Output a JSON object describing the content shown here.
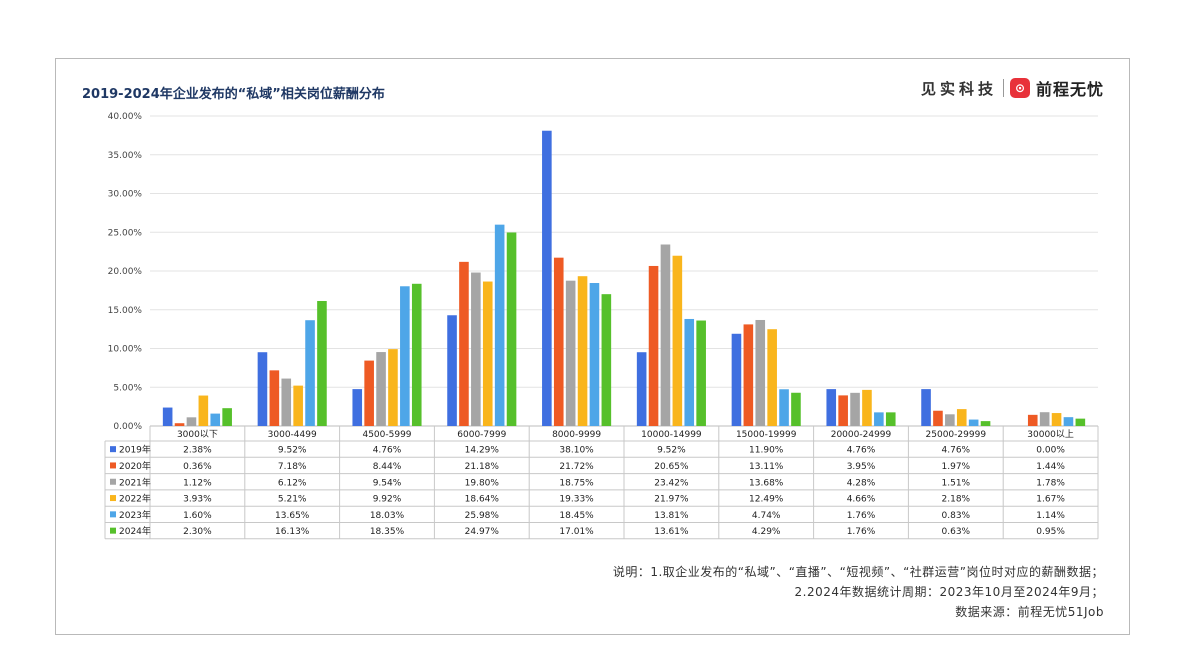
{
  "header": {
    "title": "2019-2024年企业发布的“私域”相关岗位薪酬分布",
    "brand_left": "见实科技",
    "brand_logo_char": "⊙",
    "brand_right": "前程无忧"
  },
  "notes": {
    "line1": "说明：1.取企业发布的“私域”、“直播”、“短视频”、“社群运营”岗位时对应的薪酬数据；",
    "line2": "2.2024年数据统计周期：2023年10月至2024年9月；",
    "line3": "数据来源：前程无忧51Job"
  },
  "chart_data": {
    "type": "bar",
    "title": "2019-2024年企业发布的“私域”相关岗位薪酬分布",
    "xlabel": "",
    "ylabel": "",
    "ylim": [
      0,
      40
    ],
    "yticks": [
      "0.00%",
      "5.00%",
      "10.00%",
      "15.00%",
      "20.00%",
      "25.00%",
      "30.00%",
      "35.00%",
      "40.00%"
    ],
    "grid": true,
    "legend": "data-table-rows",
    "categories": [
      "3000以下",
      "3000-4499",
      "4500-5999",
      "6000-7999",
      "8000-9999",
      "10000-14999",
      "15000-19999",
      "20000-24999",
      "25000-29999",
      "30000以上"
    ],
    "series": [
      {
        "name": "2019年",
        "color": "#3f6fe0",
        "values": [
          2.38,
          9.52,
          4.76,
          14.29,
          38.1,
          9.52,
          11.9,
          4.76,
          4.76,
          0.0
        ],
        "labels": [
          "2.38%",
          "9.52%",
          "4.76%",
          "14.29%",
          "38.10%",
          "9.52%",
          "11.90%",
          "4.76%",
          "4.76%",
          "0.00%"
        ]
      },
      {
        "name": "2020年",
        "color": "#ee5a24",
        "values": [
          0.36,
          7.18,
          8.44,
          21.18,
          21.72,
          20.65,
          13.11,
          3.95,
          1.97,
          1.44
        ],
        "labels": [
          "0.36%",
          "7.18%",
          "8.44%",
          "21.18%",
          "21.72%",
          "20.65%",
          "13.11%",
          "3.95%",
          "1.97%",
          "1.44%"
        ]
      },
      {
        "name": "2021年",
        "color": "#a5a5a5",
        "values": [
          1.12,
          6.12,
          9.54,
          19.8,
          18.75,
          23.42,
          13.68,
          4.28,
          1.51,
          1.78
        ],
        "labels": [
          "1.12%",
          "6.12%",
          "9.54%",
          "19.80%",
          "18.75%",
          "23.42%",
          "13.68%",
          "4.28%",
          "1.51%",
          "1.78%"
        ]
      },
      {
        "name": "2022年",
        "color": "#f9b51c",
        "values": [
          3.93,
          5.21,
          9.92,
          18.64,
          19.33,
          21.97,
          12.49,
          4.66,
          2.18,
          1.67
        ],
        "labels": [
          "3.93%",
          "5.21%",
          "9.92%",
          "18.64%",
          "19.33%",
          "21.97%",
          "12.49%",
          "4.66%",
          "2.18%",
          "1.67%"
        ]
      },
      {
        "name": "2023年",
        "color": "#4ea6e8",
        "values": [
          1.6,
          13.65,
          18.03,
          25.98,
          18.45,
          13.81,
          4.74,
          1.76,
          0.83,
          1.14
        ],
        "labels": [
          "1.60%",
          "13.65%",
          "18.03%",
          "25.98%",
          "18.45%",
          "13.81%",
          "4.74%",
          "1.76%",
          "0.83%",
          "1.14%"
        ]
      },
      {
        "name": "2024年",
        "color": "#56c02b",
        "values": [
          2.3,
          16.13,
          18.35,
          24.97,
          17.01,
          13.61,
          4.29,
          1.76,
          0.63,
          0.95
        ],
        "labels": [
          "2.30%",
          "16.13%",
          "18.35%",
          "24.97%",
          "17.01%",
          "13.61%",
          "4.29%",
          "1.76%",
          "0.63%",
          "0.95%"
        ]
      }
    ]
  }
}
